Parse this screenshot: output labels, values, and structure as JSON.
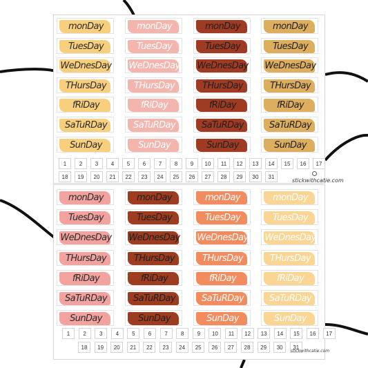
{
  "days": [
    "monDay",
    "TuesDay",
    "WeDnesDay",
    "THursDay",
    "fRiDay",
    "SaTuRDay",
    "SunDay"
  ],
  "sheets": [
    {
      "columns": [
        {
          "fill": "#f7cf7d",
          "text": "#2b2b2b"
        },
        {
          "fill": "#f4b5ae",
          "text": "#ffffff"
        },
        {
          "fill": "#a03b23",
          "text": "#1f1f1f"
        },
        {
          "fill": "#deae5f",
          "text": "#1f1f1f"
        }
      ],
      "row1": [
        "1",
        "2",
        "3",
        "4",
        "5",
        "6",
        "7",
        "8",
        "9",
        "10",
        "11",
        "12",
        "13",
        "14",
        "15",
        "16",
        "17"
      ],
      "row2": [
        "18",
        "19",
        "20",
        "21",
        "22",
        "23",
        "24",
        "25",
        "26",
        "27",
        "28",
        "29",
        "30",
        "31"
      ],
      "watermark": "stickwithcatie.com"
    },
    {
      "columns": [
        {
          "fill": "#f2a3a0",
          "text": "#2b2b2b"
        },
        {
          "fill": "#9e3c1f",
          "text": "#1f1f1f"
        },
        {
          "fill": "#f28c5e",
          "text": "#ffffff"
        },
        {
          "fill": "#fbd594",
          "text": "#ffffff"
        }
      ],
      "row1": [
        "1",
        "2",
        "3",
        "4",
        "5",
        "6",
        "7",
        "8",
        "9",
        "10",
        "11",
        "12",
        "13",
        "14",
        "15",
        "16",
        "17"
      ],
      "row2": [
        "18",
        "19",
        "20",
        "21",
        "22",
        "23",
        "24",
        "25",
        "26",
        "27",
        "28",
        "29",
        "30",
        "31"
      ],
      "watermark": "stickwithcatie.com"
    }
  ]
}
